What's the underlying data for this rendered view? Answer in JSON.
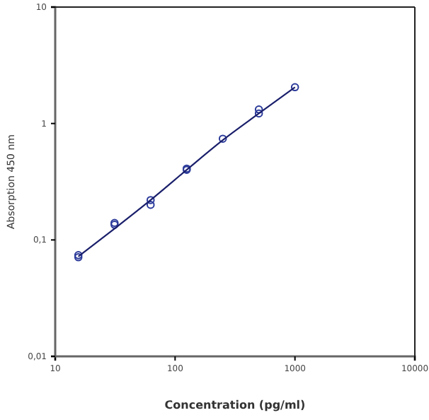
{
  "chart_data": {
    "type": "scatter",
    "xlabel": "Concentration (pg/ml)",
    "ylabel": "Absorption 450 nm",
    "log": "xy",
    "grid": false,
    "xlim": [
      10,
      10000
    ],
    "xticks": [
      10,
      100,
      1000,
      10000
    ],
    "ylim": [
      0.01,
      10
    ],
    "yticks": [
      {
        "value": 0.01,
        "label": "0,01"
      },
      {
        "value": 0.1,
        "label": "0,1"
      },
      {
        "value": 1,
        "label": "1"
      },
      {
        "value": 10,
        "label": "10"
      }
    ],
    "series": [
      {
        "marker": "circle",
        "color": "#2b3a9a",
        "x": [
          15.6,
          15.6,
          31.25,
          31.25,
          62.5,
          62.5,
          125,
          125,
          250,
          500,
          500,
          1000
        ],
        "values": [
          0.074,
          0.071,
          0.14,
          0.135,
          0.22,
          0.2,
          0.41,
          0.4,
          0.74,
          1.32,
          1.22,
          2.05
        ]
      },
      {
        "type": "line",
        "marker": "none",
        "line_style": "solid",
        "color": "#1a1f6b",
        "x": [
          15.6,
          31.25,
          62.5,
          125,
          250,
          500,
          1000
        ],
        "values": [
          0.072,
          0.125,
          0.22,
          0.4,
          0.72,
          1.22,
          2.05
        ]
      }
    ]
  }
}
